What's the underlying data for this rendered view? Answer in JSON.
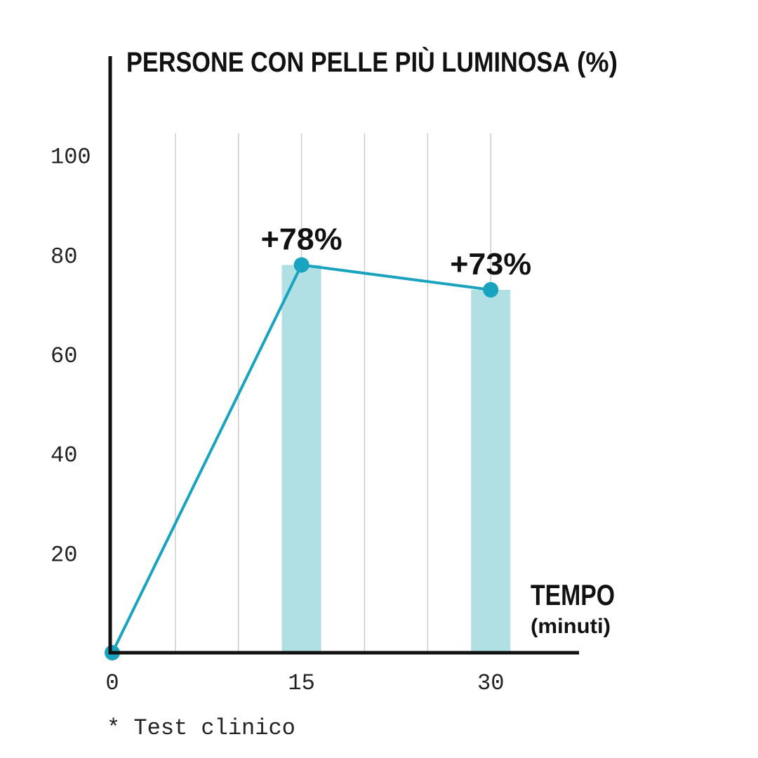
{
  "chart_data": {
    "type": "bar_line",
    "title": "PERSONE CON PELLE PIÙ LUMINOSA",
    "title_unit": "(%)",
    "x_label": "TEMPO",
    "x_unit": "(minuti)",
    "footnote": "* Test clinico",
    "x": [
      0,
      15,
      30
    ],
    "series": [
      {
        "name": "Persone con pelle più luminosa",
        "color": "#1aa3bf",
        "bar_color": "#b0dfe4",
        "values": [
          0,
          78,
          73
        ],
        "value_labels": [
          null,
          "+78%",
          "+73%"
        ]
      }
    ],
    "xlim": [
      0,
      37
    ],
    "xticks": [
      0,
      15,
      30
    ],
    "xgrid": [
      5,
      10,
      15,
      20,
      25,
      30
    ],
    "ylim": [
      0,
      120
    ],
    "yticks": [
      20,
      40,
      60,
      80,
      100
    ]
  }
}
